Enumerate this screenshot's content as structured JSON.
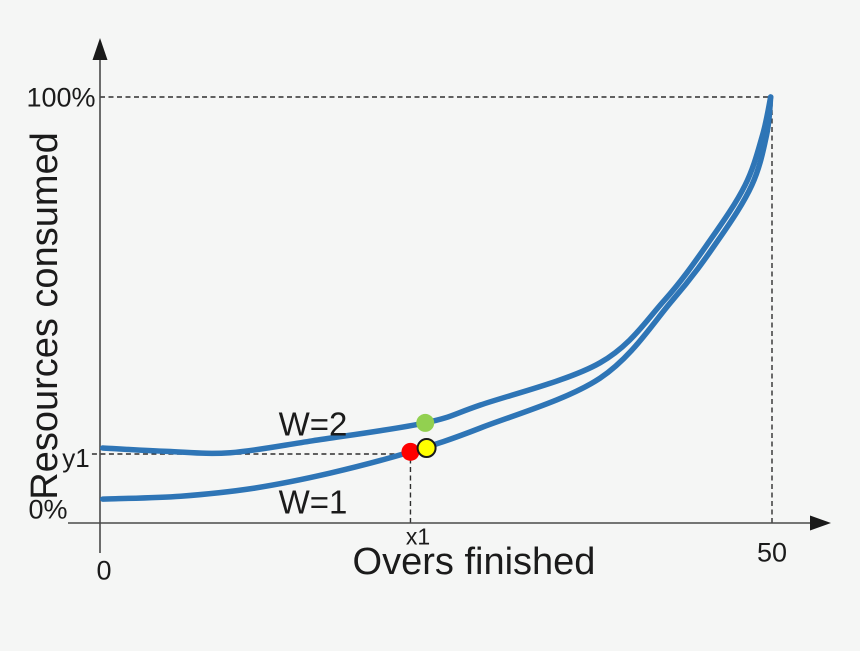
{
  "figure": {
    "background": "#f5f6f5",
    "curve_color": "#2e75b6",
    "axis_color": "#4a4a4a",
    "guide_color": "#2f2f2f",
    "text_color": "#1b1b1b"
  },
  "labels": {
    "y_axis_title": "Resources consumed",
    "x_axis_title": "Overs finished",
    "y_tick_100": "100%",
    "y_tick_y1": "y1",
    "y_tick_0": "0%",
    "x_tick_0": "0",
    "x_tick_x1": "x1",
    "x_tick_50": "50",
    "series_w2": "W=2",
    "series_w1": "W=1"
  },
  "chart_data": {
    "type": "line",
    "title": "",
    "xlabel": "Overs finished",
    "ylabel": "Resources consumed",
    "xlim": [
      0,
      50
    ],
    "ylim": [
      0,
      100
    ],
    "x_ticks": [
      "0",
      "x1",
      "50"
    ],
    "y_ticks": [
      "0%",
      "y1",
      "100%"
    ],
    "grid": false,
    "legend_position": "inline-curve-labels",
    "series": [
      {
        "name": "W=2",
        "color": "#2e75b6",
        "points": [
          [
            0.2,
            17.6
          ],
          [
            5,
            16.8
          ],
          [
            9.7,
            16.5
          ],
          [
            15.8,
            19.3
          ],
          [
            24.2,
            23.5
          ],
          [
            28.3,
            27.7
          ],
          [
            37.2,
            37.6
          ],
          [
            42.0,
            52.3
          ],
          [
            45.4,
            66.4
          ],
          [
            48.0,
            79.3
          ],
          [
            49.3,
            91.1
          ],
          [
            49.9,
            100
          ]
        ]
      },
      {
        "name": "W=1",
        "color": "#2e75b6",
        "points": [
          [
            0.2,
            5.6
          ],
          [
            6,
            6.3
          ],
          [
            11.5,
            8.2
          ],
          [
            17.1,
            11.7
          ],
          [
            23.1,
            16.7
          ],
          [
            28.3,
            22.3
          ],
          [
            37.2,
            34.0
          ],
          [
            42.6,
            52.3
          ],
          [
            46.0,
            66.4
          ],
          [
            48.5,
            79.3
          ],
          [
            49.6,
            91.1
          ],
          [
            49.9,
            100
          ]
        ]
      }
    ],
    "markers": [
      {
        "name": "red-point",
        "x": 23.1,
        "y": 16.7,
        "fill": "#fe0000",
        "stroke": "none"
      },
      {
        "name": "yellow-point",
        "x": 24.3,
        "y": 17.6,
        "fill": "#ffff00",
        "stroke": "#1a1a1a"
      },
      {
        "name": "green-point",
        "x": 24.2,
        "y": 23.5,
        "fill": "#92d050",
        "stroke": "none"
      }
    ],
    "guides": [
      {
        "name": "guide-100pct-horizontal",
        "type": "h",
        "y": 100,
        "x1": 0,
        "x2": 50
      },
      {
        "name": "guide-50-vertical",
        "type": "v",
        "x": 50,
        "y1": 0,
        "y2": 100
      },
      {
        "name": "guide-y1-horizontal",
        "type": "h",
        "y": 16.2,
        "x1": -0.6,
        "x2": 23.1
      },
      {
        "name": "guide-x1-vertical",
        "type": "v",
        "x": 23.1,
        "y1": 0,
        "y2": 16.2
      }
    ],
    "annotations": [
      {
        "text": "W=2",
        "x": 15.8,
        "y": 23.2
      },
      {
        "text": "W=1",
        "x": 15.8,
        "y": 4.9
      }
    ]
  }
}
